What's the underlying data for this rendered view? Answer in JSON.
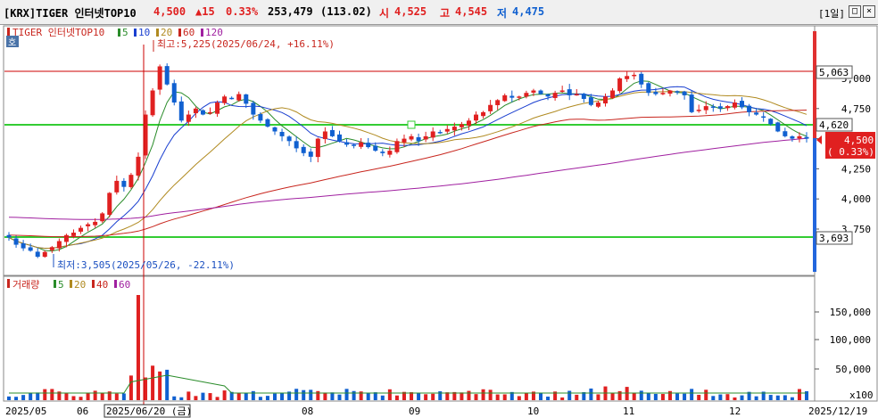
{
  "header": {
    "title": "[KRX]TIGER 인터넷TOP10",
    "price": "4,500",
    "change": "▲15",
    "change_pct": "0.33%",
    "volume": "253,479",
    "amount": "(113.02)",
    "open_label": "시",
    "open": "4,525",
    "high_label": "고",
    "high": "4,545",
    "low_label": "저",
    "low": "4,475",
    "period": "[1일]"
  },
  "colors": {
    "up": "#e02020",
    "down": "#1060d0",
    "ma5": "#2a8c2a",
    "ma10": "#1a3fd0",
    "ma20": "#b08a20",
    "ma60": "#c8261e",
    "ma120": "#a020a0",
    "hline": "#33cc33",
    "resistance": "#cc0000"
  },
  "price_panel": {
    "legend": {
      "name": "TIGER 인터넷TOP10",
      "items": [
        "5",
        "10",
        "20",
        "60",
        "120"
      ]
    },
    "hint_icon": "호",
    "high_annotation": "최고:5,225(2025/06/24, +16.11%)",
    "low_annotation": "최저:3,505(2025/05/26, -22.11%)",
    "y_ticks": [
      "5,000",
      "4,750",
      "4,500",
      "4,250",
      "4,000",
      "3,750"
    ],
    "tag_resistance": "5,063",
    "tag_upper": "4,620",
    "tag_lower": "3,693",
    "current_price": "4,500",
    "current_pct": "( 0.33%)"
  },
  "volume_panel": {
    "label": "거래량",
    "items": [
      "5",
      "20",
      "40",
      "60"
    ],
    "y_ticks": [
      "150,000",
      "100,000",
      "50,000"
    ],
    "unit": "x100"
  },
  "x_axis": {
    "labels": [
      "2025/05",
      "06",
      "08",
      "09",
      "10",
      "11",
      "12",
      "2025/12/19"
    ],
    "cursor_label": "2025/06/20 (금)"
  },
  "chart_data": {
    "type": "candlestick",
    "price_scale": {
      "value_at_5000": 5000,
      "value_at_4750": 4750,
      "value_at_3750": 3750
    },
    "levels": {
      "resistance": 5063,
      "upper_band": 4620,
      "lower_band": 3693
    },
    "closes": [
      3680,
      3620,
      3590,
      3570,
      3520,
      3560,
      3600,
      3650,
      3700,
      3720,
      3760,
      3790,
      3810,
      3880,
      4050,
      4150,
      4100,
      4200,
      4350,
      4700,
      4900,
      5100,
      4950,
      4800,
      4650,
      4700,
      4750,
      4700,
      4720,
      4800,
      4850,
      4830,
      4870,
      4790,
      4700,
      4650,
      4600,
      4560,
      4520,
      4480,
      4420,
      4380,
      4350,
      4500,
      4560,
      4520,
      4480,
      4450,
      4440,
      4470,
      4430,
      4400,
      4380,
      4400,
      4480,
      4500,
      4520,
      4480,
      4520,
      4560,
      4550,
      4580,
      4600,
      4620,
      4650,
      4700,
      4720,
      4780,
      4820,
      4860,
      4840,
      4850,
      4880,
      4900,
      4870,
      4850,
      4880,
      4900,
      4860,
      4870,
      4830,
      4780,
      4800,
      4850,
      4900,
      5000,
      5020,
      5030,
      4950,
      4880,
      4870,
      4880,
      4900,
      4890,
      4860,
      4720,
      4740,
      4770,
      4760,
      4750,
      4770,
      4800,
      4760,
      4720,
      4700,
      4680,
      4620,
      4560,
      4520,
      4500,
      4520,
      4500
    ]
  }
}
